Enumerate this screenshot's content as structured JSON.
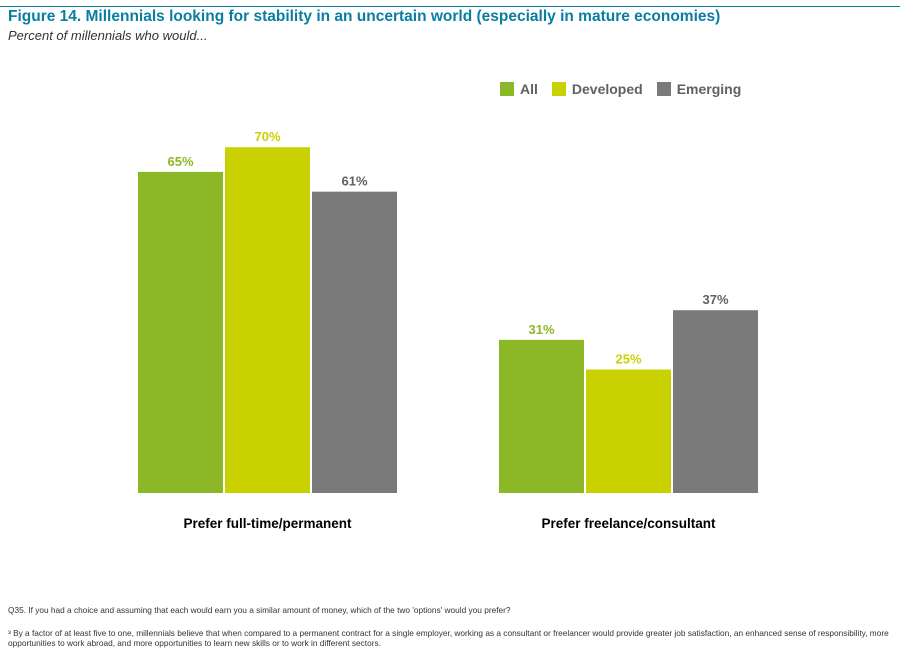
{
  "header": {
    "title": "Figure 14. Millennials looking for stability in an uncertain world (especially in mature economies)",
    "subtitle": "Percent of millennials who would..."
  },
  "colors": {
    "accent": "#0a7ea0",
    "all": "#8cb827",
    "developed": "#c9d200",
    "emerging": "#7a7a7a"
  },
  "chart_data": {
    "type": "bar",
    "title": "Figure 14. Millennials looking for stability in an uncertain world (especially in mature economies)",
    "subtitle": "Percent of millennials who would...",
    "categories": [
      "Prefer full-time/permanent",
      "Prefer freelance/consultant"
    ],
    "series": [
      {
        "name": "All",
        "values": [
          65,
          31
        ],
        "labels": [
          "65%",
          "31%"
        ],
        "color": "#8cb827"
      },
      {
        "name": "Developed",
        "values": [
          70,
          25
        ],
        "labels": [
          "70%",
          "25%"
        ],
        "color": "#c9d200"
      },
      {
        "name": "Emerging",
        "values": [
          61,
          37
        ],
        "labels": [
          "61%",
          "37%"
        ],
        "color": "#7a7a7a"
      }
    ],
    "ylim": [
      0,
      100
    ],
    "xlabel": "",
    "ylabel": "",
    "grid": false,
    "legend": "top-right"
  },
  "footnotes": {
    "q35": "Q35. If you had a choice and assuming that each would earn you a similar amount of money, which of the two 'options' would you prefer?",
    "note": "³ By a factor of at least five to one, millennials believe that when compared to a permanent contract for a single employer, working as a consultant or freelancer would provide greater job satisfaction, an enhanced sense of responsibility, more opportunities to work abroad, and more opportunities to learn new skills or to work in different sectors."
  }
}
